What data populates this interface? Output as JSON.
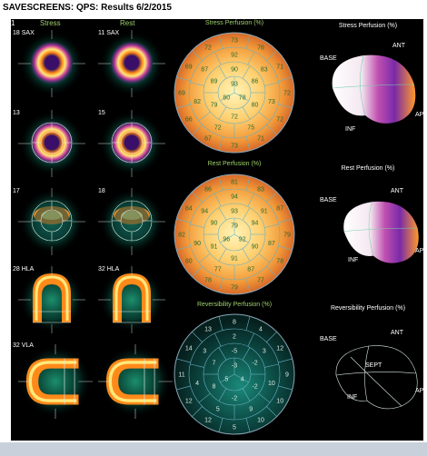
{
  "window": {
    "title": "SAVESCREENS:  QPS:  Results 6/2/2015"
  },
  "columns": {
    "stress": "Stress",
    "rest": "Rest",
    "marker": "1"
  },
  "slices": [
    {
      "stress": "18 SAX",
      "rest": "11 SAX"
    },
    {
      "stress": "13",
      "rest": "15"
    },
    {
      "stress": "17",
      "rest": "18"
    },
    {
      "stress": "28 HLA",
      "rest": "32 HLA"
    },
    {
      "stress": "32 VLA",
      "rest": ""
    }
  ],
  "polar_maps": [
    {
      "title": "Stress Perfusion (%)",
      "kind": "perfusion",
      "values": {
        "ring4": [
          "73",
          "76",
          "71",
          "72",
          "72",
          "71",
          "73",
          "67",
          "66",
          "69",
          "69",
          "72"
        ],
        "ring3": [
          "92",
          "83",
          "73",
          "75",
          "72",
          "82",
          "87"
        ],
        "ring2": [
          "90",
          "86",
          "80",
          "72",
          "79",
          "89"
        ],
        "center": [
          "93",
          "78",
          "80"
        ]
      }
    },
    {
      "title": "Rest Perfusion (%)",
      "kind": "perfusion",
      "values": {
        "ring4": [
          "81",
          "83",
          "87",
          "79",
          "78",
          "77",
          "79",
          "78",
          "80",
          "82",
          "84",
          "86"
        ],
        "ring3": [
          "94",
          "91",
          "87",
          "87",
          "77",
          "90",
          "94"
        ],
        "ring2": [
          "93",
          "94",
          "90",
          "91",
          "91",
          "90"
        ],
        "center": [
          "79",
          "92",
          "96"
        ]
      }
    },
    {
      "title": "Reversibility Perfusion (%)",
      "kind": "reversibility",
      "values": {
        "ring4": [
          "8",
          "4",
          "12",
          "9",
          "10",
          "10",
          "5",
          "12",
          "12",
          "11",
          "14",
          "13"
        ],
        "ring3": [
          "2",
          "3",
          "10",
          "9",
          "5",
          "4",
          "3"
        ],
        "ring2": [
          "-5",
          "-2",
          "-2",
          "-2",
          "8",
          "7"
        ],
        "center": [
          "-3",
          "4",
          "5"
        ]
      }
    }
  ],
  "renders_3d": [
    {
      "title": "Stress Perfusion (%)",
      "base": "BASE",
      "ant": "ANT",
      "inf": "INF",
      "side": "AP",
      "septum": ""
    },
    {
      "title": "Rest Perfusion (%)",
      "base": "BASE",
      "ant": "ANT",
      "inf": "INF",
      "side": "AP",
      "septum": ""
    },
    {
      "title": "Reversibility Perfusion (%)",
      "base": "BASE",
      "ant": "ANT",
      "inf": "INF",
      "side": "AP",
      "septum": "SEPT"
    }
  ]
}
